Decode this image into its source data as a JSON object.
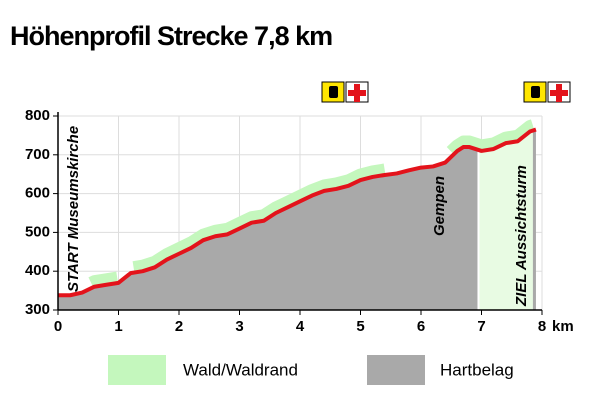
{
  "chart_data": {
    "type": "area",
    "title": "Höhenprofil Strecke 7,8 km",
    "x": [
      0,
      0.2,
      0.4,
      0.6,
      0.8,
      1.0,
      1.2,
      1.4,
      1.6,
      1.8,
      2.0,
      2.2,
      2.4,
      2.6,
      2.8,
      3.0,
      3.2,
      3.4,
      3.6,
      3.8,
      4.0,
      4.2,
      4.4,
      4.6,
      4.8,
      5.0,
      5.2,
      5.4,
      5.6,
      5.8,
      6.0,
      6.2,
      6.4,
      6.6,
      6.7,
      6.8,
      7.0,
      7.2,
      7.4,
      7.6,
      7.8,
      7.9
    ],
    "series": [
      {
        "name": "Hartbelag",
        "color": "#a9a9a9",
        "line_color": "#e3131b",
        "values": [
          338,
          338,
          345,
          360,
          365,
          370,
          395,
          400,
          410,
          430,
          445,
          460,
          480,
          490,
          495,
          510,
          525,
          530,
          550,
          565,
          580,
          595,
          607,
          612,
          620,
          635,
          643,
          648,
          652,
          660,
          667,
          670,
          680,
          710,
          720,
          720,
          710,
          715,
          730,
          735,
          760,
          765
        ]
      }
    ],
    "forest": {
      "name": "Wald/Waldrand",
      "color": "#c4f7bd",
      "ranges": [
        [
          0.55,
          0.98
        ],
        [
          1.25,
          5.4
        ],
        [
          6.5,
          7.85
        ]
      ],
      "goal_zone": [
        6.95,
        7.85
      ],
      "goal_color": "#e8fbe3"
    },
    "annotations": [
      "START Museumskirche",
      "Gempen",
      "ZIEL Aussichtsturm"
    ],
    "x_unit": "km",
    "xlim": [
      0,
      8
    ],
    "xticks": [
      0,
      1,
      2,
      3,
      4,
      5,
      6,
      7,
      8
    ],
    "ylim": [
      300,
      800
    ],
    "yticks": [
      300,
      400,
      500,
      600,
      700,
      800
    ],
    "grid": true
  }
}
